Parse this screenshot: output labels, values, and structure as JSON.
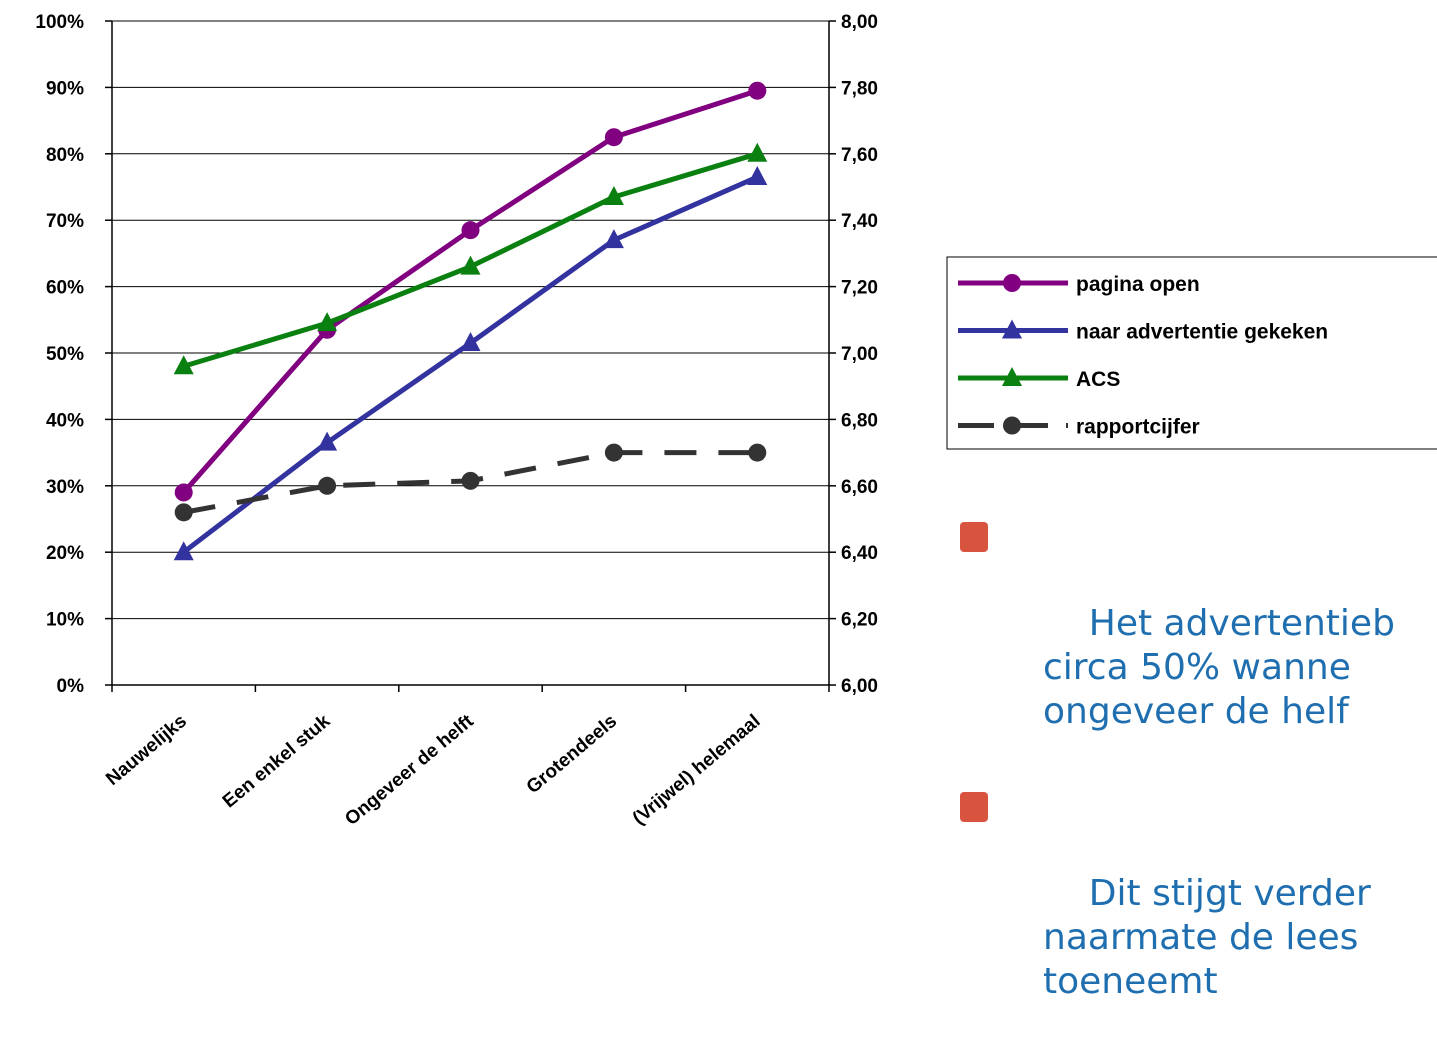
{
  "chart_data": {
    "type": "line",
    "title": "",
    "xlabel": "",
    "categories": [
      "Nauwelijks",
      "Een enkel stuk",
      "Ongeveer de helft",
      "Grotendeels",
      "(Vrijwel) helemaal"
    ],
    "y_left": {
      "range": [
        0,
        100
      ],
      "ticks": [
        0,
        10,
        20,
        30,
        40,
        50,
        60,
        70,
        80,
        90,
        100
      ],
      "tick_labels": [
        "0%",
        "10%",
        "20%",
        "30%",
        "40%",
        "50%",
        "60%",
        "70%",
        "80%",
        "90%",
        "100%"
      ]
    },
    "y_right": {
      "range": [
        6.0,
        8.0
      ],
      "ticks": [
        6.0,
        6.2,
        6.4,
        6.6,
        6.8,
        7.0,
        7.2,
        7.4,
        7.6,
        7.8,
        8.0
      ],
      "tick_labels": [
        "6,00",
        "6,20",
        "6,40",
        "6,60",
        "6,80",
        "7,00",
        "7,20",
        "7,40",
        "7,60",
        "7,80",
        "8,00"
      ]
    },
    "grid": true,
    "legend_position": "right",
    "series": [
      {
        "name": "pagina open",
        "axis": "left",
        "values": [
          29,
          53.5,
          68.5,
          82.5,
          89.5
        ],
        "color": "#800080",
        "marker": "circle",
        "dash": false
      },
      {
        "name": "naar advertentie gekeken",
        "axis": "left",
        "values": [
          20,
          36.5,
          51.5,
          67,
          76.5
        ],
        "color": "#3333a0",
        "marker": "triangle",
        "dash": false
      },
      {
        "name": "ACS",
        "axis": "left",
        "values": [
          48,
          54.5,
          63,
          73.5,
          80
        ],
        "color": "#0a8010",
        "marker": "triangle",
        "dash": false
      },
      {
        "name": "rapportcijfer",
        "axis": "right",
        "values": [
          6.52,
          6.6,
          6.615,
          6.7,
          6.7
        ],
        "color": "#333333",
        "marker": "circle",
        "dash": true
      }
    ]
  },
  "bullets": [
    {
      "text": "Het advertentieb\ncirca 50% wanne\nongeveer de helf"
    },
    {
      "text": "Dit stijgt verder\nnaarmate de lees\ntoeneemt"
    }
  ],
  "colors": {
    "bullet_text": "#1f6fb0",
    "bullet_marker": "#d9543f"
  }
}
